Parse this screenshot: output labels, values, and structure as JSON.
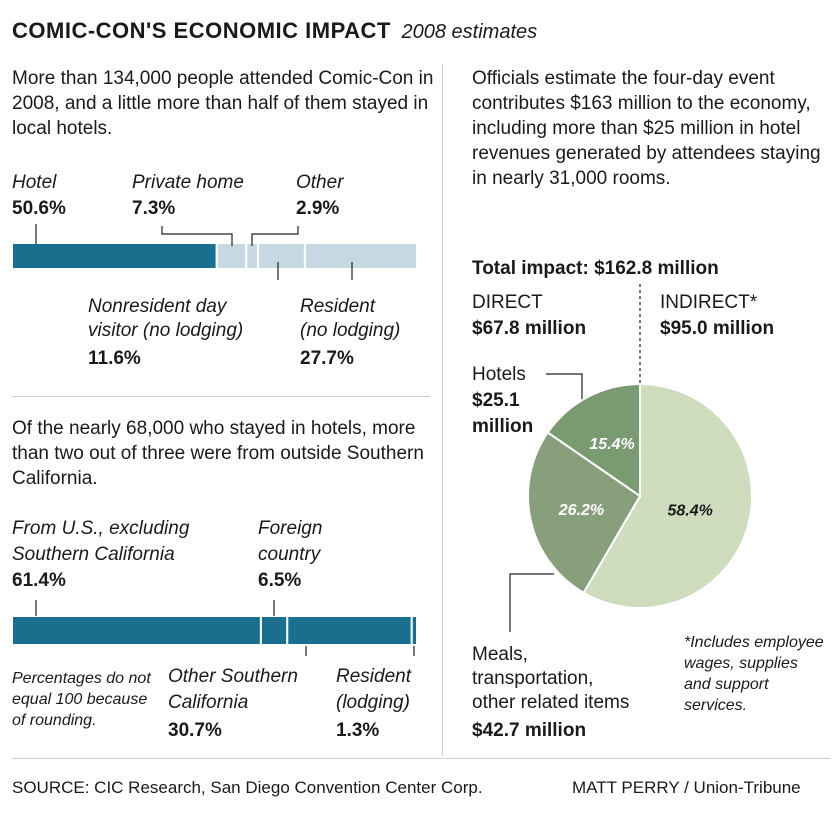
{
  "title": "COMIC-CON'S ECONOMIC IMPACT",
  "subtitle": "2008 estimates",
  "attendance": {
    "intro": "More than 134,000 people attended Comic-Con in 2008, and a little more than half of them stayed in local hotels.",
    "labels": {
      "hotel": "Hotel",
      "private": "Private home",
      "other": "Other",
      "nonres_1": "Nonresident day",
      "nonres_2": "visitor (no lodging)",
      "resident_1": "Resident",
      "resident_2": "(no lodging)"
    },
    "values_text": {
      "hotel": "50.6%",
      "private": "7.3%",
      "other": "2.9%",
      "nonres": "11.6%",
      "resident": "27.7%"
    }
  },
  "hotel_origin": {
    "intro": "Of the nearly 68,000 who stayed in hotels, more than two out of three were from outside Southern California.",
    "labels": {
      "us_1": "From U.S., excluding",
      "us_2": "Southern California",
      "foreign_1": "Foreign",
      "foreign_2": "country",
      "other_1": "Other Southern",
      "other_2": "California",
      "resident_1": "Resident",
      "resident_2": "(lodging)"
    },
    "values_text": {
      "us": "61.4%",
      "foreign": "6.5%",
      "other": "30.7%",
      "resident": "1.3%"
    },
    "note": "Percentages do not equal 100 because of rounding."
  },
  "impact": {
    "intro": "Officials estimate the four-day event contributes $163 million to the economy, including more than $25 million in hotel revenues generated by attendees staying in nearly 31,000 rooms.",
    "total": "Total impact: $162.8 million",
    "direct_label": "DIRECT",
    "direct_value": "$67.8 million",
    "indirect_label": "INDIRECT*",
    "indirect_value": "$95.0 million",
    "hotels_label": "Hotels",
    "hotels_value_1": "$25.1",
    "hotels_value_2": "million",
    "meals_1": "Meals,",
    "meals_2": "transportation,",
    "meals_3": "other related items",
    "meals_value": "$42.7 million",
    "footnote": "*Includes employee wages, supplies and support services."
  },
  "source": "SOURCE: CIC Research, San Diego Convention Center Corp.",
  "credit": "MATT PERRY / Union-Tribune",
  "colors": {
    "dark_teal": "#1a6e8e",
    "light_blue": "#c6d8e2",
    "pie_dark": "#7a9a72",
    "pie_light": "#cfdcbe",
    "pie_mid": "#889f7c"
  },
  "chart_data": [
    {
      "type": "bar",
      "stacked": true,
      "categories": [
        "Hotel",
        "Private home",
        "Other",
        "Nonresident day visitor (no lodging)",
        "Resident (no lodging)"
      ],
      "values": [
        50.6,
        7.3,
        2.9,
        11.6,
        27.7
      ],
      "unit": "%"
    },
    {
      "type": "bar",
      "stacked": true,
      "categories": [
        "From U.S., excluding Southern California",
        "Foreign country",
        "Other Southern California",
        "Resident (lodging)"
      ],
      "values": [
        61.4,
        6.5,
        30.7,
        1.3
      ],
      "unit": "%"
    },
    {
      "type": "pie",
      "title": "Total impact: $162.8 million",
      "slices": [
        {
          "label": "INDIRECT*",
          "value": 58.4,
          "text": "58.4%"
        },
        {
          "label": "Meals, transportation, other related items",
          "value": 26.2,
          "text": "26.2%"
        },
        {
          "label": "Hotels",
          "value": 15.4,
          "text": "15.4%"
        }
      ]
    }
  ]
}
